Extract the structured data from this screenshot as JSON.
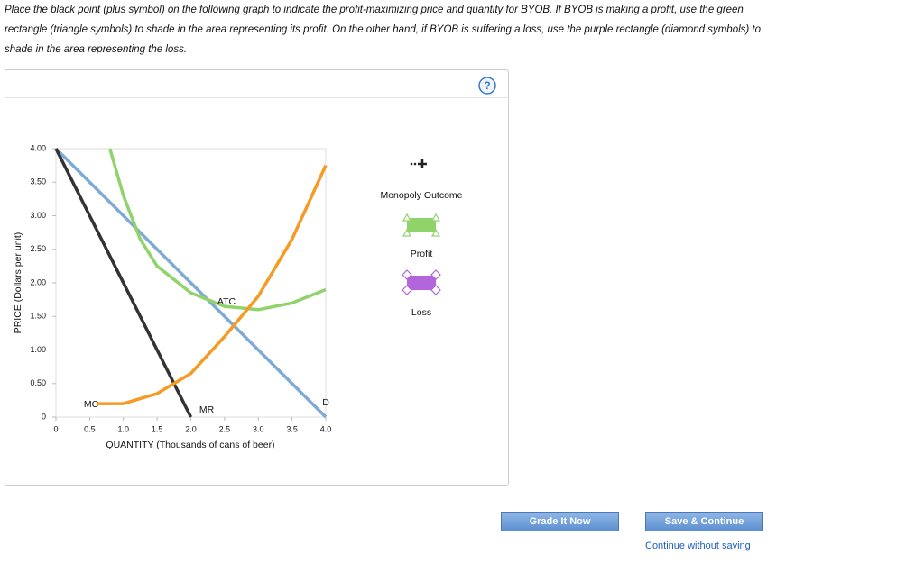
{
  "instructions": "Place the black point (plus symbol) on the following graph to indicate the profit-maximizing price and quantity for BYOB. If BYOB is making a profit, use the green rectangle (triangle symbols) to shade in the area representing its profit. On the other hand, if BYOB is suffering a loss, use the purple rectangle (diamond symbols) to shade in the area representing the loss.",
  "help": "?",
  "chart_data": {
    "type": "line",
    "x_label": "QUANTITY (Thousands of cans of beer)",
    "y_label": "PRICE (Dollars per unit)",
    "xlim": [
      0,
      4
    ],
    "ylim": [
      0,
      4
    ],
    "xticks": [
      0,
      0.5,
      {
        "value": 1,
        "label": "1.0"
      },
      1.5,
      {
        "value": 2,
        "label": "2.0"
      },
      2.5,
      {
        "value": 3,
        "label": "3.0"
      },
      3.5,
      {
        "value": 4,
        "label": "4.0"
      }
    ],
    "yticks": [
      0,
      {
        "value": 0.5,
        "label": "0.50"
      },
      {
        "value": 1,
        "label": "1.00"
      },
      {
        "value": 1.5,
        "label": "1.50"
      },
      {
        "value": 2,
        "label": "2.00"
      },
      {
        "value": 2.5,
        "label": "2.50"
      },
      {
        "value": 3,
        "label": "3.00"
      },
      {
        "value": 3.5,
        "label": "3.50"
      },
      {
        "value": 4,
        "label": "4.00"
      }
    ],
    "grid": false,
    "series": [
      {
        "name": "D",
        "color": "#7eaad6",
        "x": [
          0,
          4
        ],
        "values": [
          4,
          0
        ]
      },
      {
        "name": "MR",
        "color": "#333333",
        "x": [
          0,
          2
        ],
        "values": [
          4,
          0
        ]
      },
      {
        "name": "ATC",
        "color": "#8fd36a",
        "x": [
          0.8,
          1,
          1.25,
          1.5,
          2,
          2.5,
          3,
          3.5,
          4
        ],
        "values": [
          4,
          3.3,
          2.65,
          2.25,
          1.85,
          1.65,
          1.6,
          1.7,
          1.9
        ]
      },
      {
        "name": "MC",
        "color": "#f59a23",
        "x": [
          0.6,
          1,
          1.5,
          2,
          2.5,
          3,
          3.5,
          4
        ],
        "values": [
          0.2,
          0.2,
          0.35,
          0.65,
          1.2,
          1.8,
          2.65,
          3.75
        ]
      }
    ]
  },
  "tools": [
    "Monopoly Outcome",
    "Profit",
    "Loss"
  ],
  "buttons": [
    "Grade It Now",
    "Save & Continue"
  ],
  "link": "Continue without saving"
}
